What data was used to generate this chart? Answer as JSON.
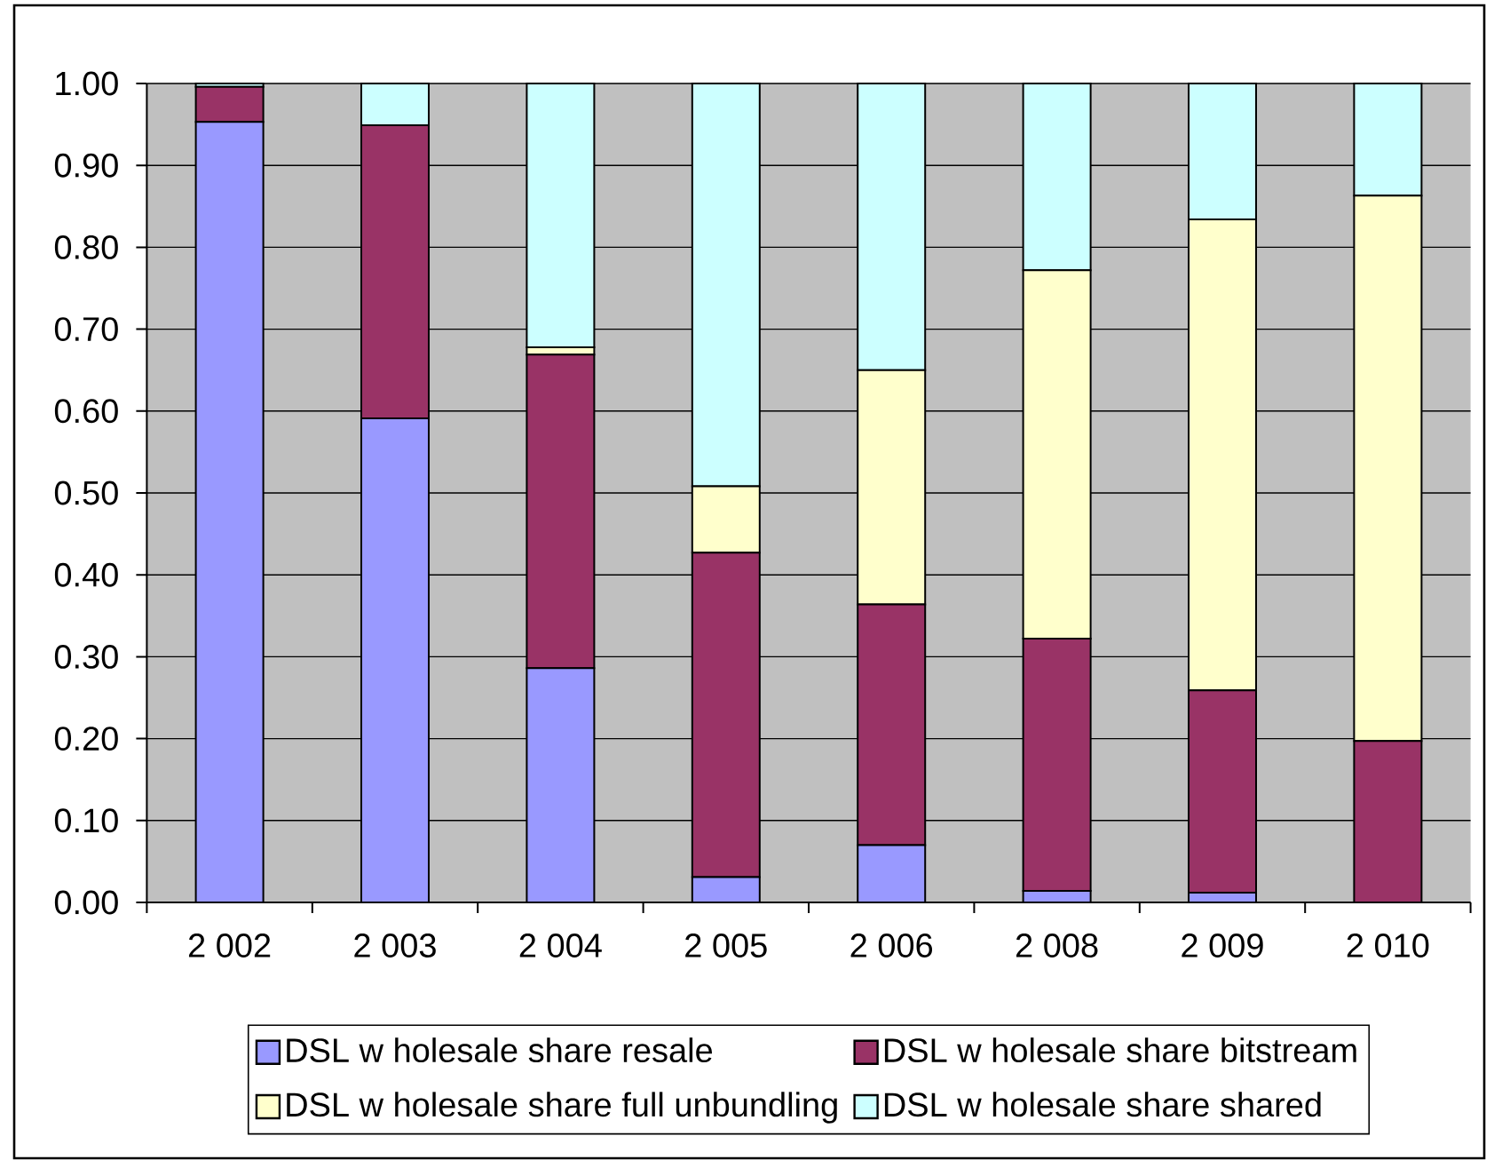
{
  "chart_data": {
    "type": "bar",
    "stacked": true,
    "categories": [
      "2 002",
      "2 003",
      "2 004",
      "2 005",
      "2 006",
      "2 008",
      "2 009",
      "2 010"
    ],
    "series": [
      {
        "name": "DSL w holesale share resale",
        "color": "#9999ff",
        "values": [
          0.953,
          0.591,
          0.286,
          0.031,
          0.07,
          0.014,
          0.012,
          0
        ]
      },
      {
        "name": "DSL w holesale share bitstream",
        "color": "#993366",
        "values": [
          0.043,
          0.358,
          0.383,
          0.396,
          0.294,
          0.308,
          0.247,
          0.197
        ]
      },
      {
        "name": "DSL w holesale share full unbundling",
        "color": "#ffffcc",
        "values": [
          0,
          0,
          0.009,
          0.081,
          0.286,
          0.45,
          0.575,
          0.666
        ]
      },
      {
        "name": "DSL w holesale share shared",
        "color": "#ccffff",
        "values": [
          0.004,
          0.051,
          0.322,
          0.492,
          0.35,
          0.228,
          0.166,
          0.137
        ]
      }
    ],
    "ylim": [
      0,
      1
    ],
    "yticks": [
      {
        "value": 0,
        "label": "0.00"
      },
      {
        "value": 0.1,
        "label": "0.10"
      },
      {
        "value": 0.2,
        "label": "0.20"
      },
      {
        "value": 0.3,
        "label": "0.30"
      },
      {
        "value": 0.4,
        "label": "0.40"
      },
      {
        "value": 0.5,
        "label": "0.50"
      },
      {
        "value": 0.6,
        "label": "0.60"
      },
      {
        "value": 0.7,
        "label": "0.70"
      },
      {
        "value": 0.8,
        "label": "0.80"
      },
      {
        "value": 0.9,
        "label": "0.90"
      },
      {
        "value": 1,
        "label": "1.00"
      }
    ],
    "grid": "y",
    "legend": "bottom"
  }
}
